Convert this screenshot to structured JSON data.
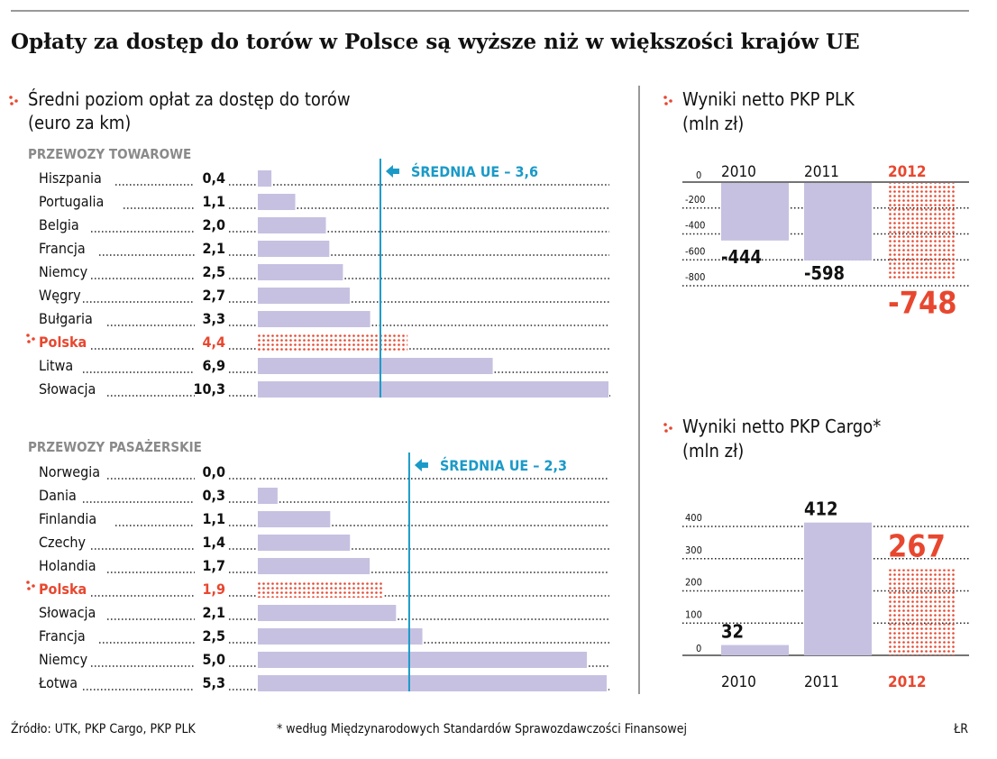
{
  "title": "Opłaty za dostęp do torów w Polsce są wyższe niż w większości krajów UE",
  "colors": {
    "bar": "#c6c1e1",
    "highlight": "#e8472f",
    "average": "#1b9ac8",
    "text": "#111111",
    "section": "#8a8a8a"
  },
  "chart_data": [
    {
      "type": "bar",
      "orientation": "horizontal",
      "title_line1": "Średni poziom opłat za dostęp do torów",
      "title_line2": "(euro za km)",
      "subtitle": "PRZEWOZY TOWAROWE",
      "categories": [
        "Hiszpania",
        "Portugalia",
        "Belgia",
        "Francja",
        "Niemcy",
        "Węgry",
        "Bułgaria",
        "Polska",
        "Litwa",
        "Słowacja"
      ],
      "labels": [
        "0,4",
        "1,1",
        "2,0",
        "2,1",
        "2,5",
        "2,7",
        "3,3",
        "4,4",
        "6,9",
        "10,3"
      ],
      "values": [
        0.4,
        1.1,
        2.0,
        2.1,
        2.5,
        2.7,
        3.3,
        4.4,
        6.9,
        10.3
      ],
      "highlight": "Polska",
      "average": 3.6,
      "average_label": "ŚREDNIA UE – 3,6",
      "xlim": [
        0,
        10.3
      ]
    },
    {
      "type": "bar",
      "orientation": "horizontal",
      "subtitle": "PRZEWOZY PASAŻERSKIE",
      "categories": [
        "Norwegia",
        "Dania",
        "Finlandia",
        "Czechy",
        "Holandia",
        "Polska",
        "Słowacja",
        "Francja",
        "Niemcy",
        "Łotwa"
      ],
      "labels": [
        "0,0",
        "0,3",
        "1,1",
        "1,4",
        "1,7",
        "1,9",
        "2,1",
        "2,5",
        "5,0",
        "5,3"
      ],
      "values": [
        0.0,
        0.3,
        1.1,
        1.4,
        1.7,
        1.9,
        2.1,
        2.5,
        5.0,
        5.3
      ],
      "highlight": "Polska",
      "average": 2.3,
      "average_label": "ŚREDNIA UE – 2,3",
      "xlim": [
        0,
        5.3
      ]
    },
    {
      "type": "bar",
      "title_line1": "Wyniki netto PKP PLK",
      "title_line2": "(mln zł)",
      "categories": [
        "2010",
        "2011",
        "2012"
      ],
      "values": [
        -444,
        -598,
        -748
      ],
      "labels": [
        "-444",
        "-598",
        "-748"
      ],
      "highlight": "2012",
      "yticks": [
        0,
        -200,
        -400,
        -600,
        -800
      ],
      "ytick_labels": [
        "0",
        "-200",
        "-400",
        "-600",
        "-800"
      ],
      "ylim": [
        -800,
        0
      ]
    },
    {
      "type": "bar",
      "title_line1": "Wyniki netto PKP Cargo*",
      "title_line2": "(mln zł)",
      "categories": [
        "2010",
        "2011",
        "2012"
      ],
      "values": [
        32,
        412,
        267
      ],
      "labels": [
        "32",
        "412",
        "267"
      ],
      "highlight": "2012",
      "yticks": [
        0,
        100,
        200,
        300,
        400
      ],
      "ytick_labels": [
        "0",
        "100",
        "200",
        "300",
        "400"
      ],
      "ylim": [
        0,
        400
      ]
    }
  ],
  "footer": {
    "source": "Źródło: UTK, PKP Cargo, PKP PLK",
    "note": "* według Międzynarodowych Standardów Sprawozdawczości Finansowej",
    "author": "ŁR"
  }
}
